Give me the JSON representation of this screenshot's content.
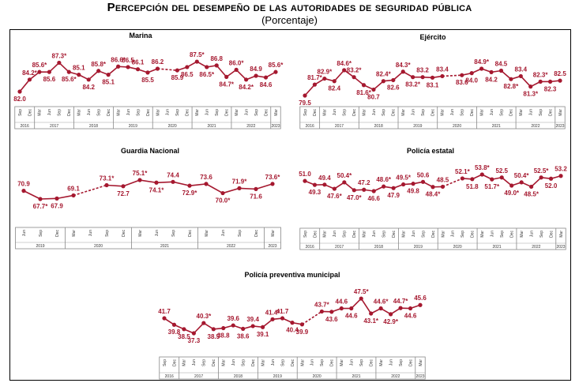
{
  "header": {
    "title": "Percepción del desempeño de las autoridades de seguridad pública",
    "subtitle": "(Porcentaje)"
  },
  "colors": {
    "series": "#a5182f",
    "axis": "#888888"
  },
  "chart_data": [
    {
      "type": "line",
      "title": "Marina",
      "x": [
        "Sep",
        "Dec",
        "Mar",
        "Jun",
        "Sep",
        "Dec",
        "Mar",
        "Jun",
        "Sep",
        "Dec",
        "Mar",
        "Jun",
        "Sep",
        "Dec",
        "Mar",
        "Jun",
        "Sep",
        "Dec",
        "Mar",
        "Jun",
        "Sep",
        "Dec",
        "Mar",
        "Jun",
        "Sep",
        "Dec",
        "Mar"
      ],
      "year_groups": [
        {
          "year": "2016",
          "count": 2
        },
        {
          "year": "2017",
          "count": 4
        },
        {
          "year": "2018",
          "count": 4
        },
        {
          "year": "2019",
          "count": 4
        },
        {
          "year": "2020",
          "count": 4
        },
        {
          "year": "2021",
          "count": 4
        },
        {
          "year": "2022",
          "count": 4
        },
        {
          "year": "2023",
          "count": 1
        }
      ],
      "values": [
        82.0,
        84.2,
        85.6,
        85.6,
        87.3,
        85.6,
        85.1,
        84.2,
        85.8,
        85.1,
        86.6,
        86.5,
        86.1,
        85.5,
        86.2,
        null,
        85.9,
        86.5,
        87.5,
        86.5,
        86.8,
        84.7,
        86.0,
        84.2,
        84.9,
        84.6,
        85.6
      ],
      "labels": [
        "82.0",
        "84.2*",
        "85.6*",
        "85.6",
        "87.3*",
        "85.6*",
        "85.1",
        "84.2",
        "85.8*",
        "85.1",
        "86.6*",
        "86.5",
        "86.1",
        "85.5",
        "86.2",
        null,
        "85.9",
        "86.5",
        "87.5*",
        "86.5*",
        "86.8",
        "84.7*",
        "86.0*",
        "84.2*",
        "84.9",
        "84.6",
        "85.6*"
      ]
    },
    {
      "type": "line",
      "title": "Ejército",
      "x": [
        "Sep",
        "Dec",
        "Mar",
        "Jun",
        "Sep",
        "Dec",
        "Mar",
        "Jun",
        "Sep",
        "Dec",
        "Mar",
        "Jun",
        "Sep",
        "Dec",
        "Mar",
        "Jun",
        "Sep",
        "Dec",
        "Mar",
        "Jun",
        "Sep",
        "Dec",
        "Mar",
        "Jun",
        "Sep",
        "Dec",
        "Mar"
      ],
      "year_groups": [
        {
          "year": "2016",
          "count": 2
        },
        {
          "year": "2017",
          "count": 4
        },
        {
          "year": "2018",
          "count": 4
        },
        {
          "year": "2019",
          "count": 4
        },
        {
          "year": "2020",
          "count": 4
        },
        {
          "year": "2021",
          "count": 4
        },
        {
          "year": "2022",
          "count": 4
        },
        {
          "year": "2023",
          "count": 1
        }
      ],
      "values": [
        79.5,
        81.7,
        82.9,
        82.4,
        84.6,
        83.2,
        81.6,
        80.7,
        82.4,
        82.6,
        84.3,
        83.2,
        83.2,
        83.1,
        83.4,
        null,
        83.6,
        84.0,
        84.9,
        84.2,
        84.5,
        82.8,
        83.4,
        81.3,
        82.3,
        82.3,
        82.5
      ],
      "labels": [
        "79.5",
        "81.7*",
        "82.9*",
        "82.4",
        "84.6*",
        "83.2*",
        "81.6*",
        "80.7",
        "82.4*",
        "82.6",
        "84.3*",
        "83.2*",
        "83.2",
        "83.1",
        "83.4",
        null,
        "83.6",
        "84.0",
        "84.9*",
        "84.2",
        "84.5",
        "82.8*",
        "83.4",
        "81.3*",
        "82.3*",
        "82.3",
        "82.5"
      ]
    },
    {
      "type": "line",
      "title": "Guardia Nacional",
      "x": [
        "Jun",
        "Sep",
        "Dec",
        "Mar",
        "Jun",
        "Sep",
        "Dec",
        "Mar",
        "Jun",
        "Sep",
        "Dec",
        "Mar",
        "Jun",
        "Sep",
        "Dec",
        "Mar"
      ],
      "year_groups": [
        {
          "year": "2019",
          "count": 3
        },
        {
          "year": "2020",
          "count": 4
        },
        {
          "year": "2021",
          "count": 4
        },
        {
          "year": "2022",
          "count": 4
        },
        {
          "year": "2023",
          "count": 1
        }
      ],
      "values": [
        70.9,
        67.7,
        67.9,
        69.1,
        null,
        73.1,
        72.7,
        75.1,
        74.1,
        74.4,
        72.9,
        73.6,
        70.0,
        71.9,
        71.6,
        73.6
      ],
      "labels": [
        "70.9",
        "67.7*",
        "67.9",
        "69.1",
        null,
        "73.1*",
        "72.7",
        "75.1*",
        "74.1*",
        "74.4",
        "72.9*",
        "73.6",
        "70.0*",
        "71.9*",
        "71.6",
        "73.6*"
      ]
    },
    {
      "type": "line",
      "title": "Policía estatal",
      "x": [
        "Sep",
        "Dec",
        "Mar",
        "Jun",
        "Sep",
        "Dec",
        "Mar",
        "Jun",
        "Sep",
        "Dec",
        "Mar",
        "Jun",
        "Sep",
        "Dec",
        "Mar",
        "Jun",
        "Sep",
        "Dec",
        "Mar",
        "Jun",
        "Sep",
        "Dec",
        "Mar",
        "Jun",
        "Sep",
        "Dec",
        "Mar"
      ],
      "year_groups": [
        {
          "year": "2016",
          "count": 2
        },
        {
          "year": "2017",
          "count": 4
        },
        {
          "year": "2018",
          "count": 4
        },
        {
          "year": "2019",
          "count": 4
        },
        {
          "year": "2020",
          "count": 4
        },
        {
          "year": "2021",
          "count": 4
        },
        {
          "year": "2022",
          "count": 4
        },
        {
          "year": "2023",
          "count": 1
        }
      ],
      "values": [
        51.0,
        49.3,
        49.4,
        47.6,
        50.4,
        47.0,
        47.2,
        46.6,
        48.6,
        47.9,
        49.5,
        49.8,
        50.6,
        48.4,
        48.5,
        null,
        52.1,
        51.8,
        53.8,
        51.7,
        52.5,
        49.0,
        50.4,
        48.5,
        52.5,
        52.0,
        53.2
      ],
      "labels": [
        "51.0",
        "49.3",
        "49.4",
        "47.6*",
        "50.4*",
        "47.0*",
        "47.2",
        "46.6",
        "48.6*",
        "47.9",
        "49.5*",
        "49.8",
        "50.6",
        "48.4*",
        "48.5",
        null,
        "52.1*",
        "51.8",
        "53.8*",
        "51.7*",
        "52.5",
        "49.0*",
        "50.4*",
        "48.5*",
        "52.5*",
        "52.0",
        "53.2"
      ]
    },
    {
      "type": "line",
      "title": "Policía preventiva municipal",
      "x": [
        "Sep",
        "Dec",
        "Mar",
        "Jun",
        "Sep",
        "Dec",
        "Mar",
        "Jun",
        "Sep",
        "Dec",
        "Mar",
        "Jun",
        "Sep",
        "Dec",
        "Mar",
        "Jun",
        "Sep",
        "Dec",
        "Mar",
        "Jun",
        "Sep",
        "Dec",
        "Mar",
        "Jun",
        "Sep",
        "Dec",
        "Mar"
      ],
      "year_groups": [
        {
          "year": "2016",
          "count": 2
        },
        {
          "year": "2017",
          "count": 4
        },
        {
          "year": "2018",
          "count": 4
        },
        {
          "year": "2019",
          "count": 4
        },
        {
          "year": "2020",
          "count": 4
        },
        {
          "year": "2021",
          "count": 4
        },
        {
          "year": "2022",
          "count": 4
        },
        {
          "year": "2023",
          "count": 1
        }
      ],
      "values": [
        41.7,
        39.8,
        38.5,
        37.3,
        40.3,
        38.5,
        38.8,
        39.6,
        38.6,
        39.4,
        39.1,
        41.4,
        41.7,
        40.4,
        39.9,
        null,
        43.7,
        43.6,
        44.6,
        44.6,
        47.5,
        43.1,
        44.6,
        42.9,
        44.7,
        44.6,
        45.6
      ],
      "labels": [
        "41.7",
        "39.8",
        "38.5",
        "37.3",
        "40.3*",
        "38.5",
        "38.8",
        "39.6",
        "38.6",
        "39.4",
        "39.1",
        "41.4*",
        "41.7",
        "40.4",
        "39.9",
        null,
        "43.7*",
        "43.6",
        "44.6",
        "44.6",
        "47.5*",
        "43.1*",
        "44.6*",
        "42.9*",
        "44.7*",
        "44.6",
        "45.6"
      ]
    }
  ]
}
